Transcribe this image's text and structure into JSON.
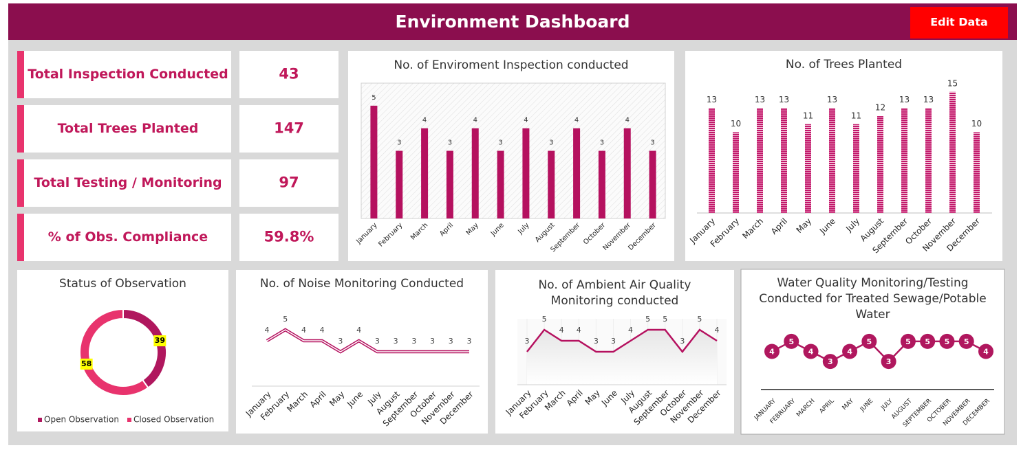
{
  "header": {
    "title": "Environment Dashboard",
    "button": "Edit Data"
  },
  "kpis": [
    {
      "label": "Total Inspection Conducted",
      "value": "43"
    },
    {
      "label": "Total Trees Planted",
      "value": "147"
    },
    {
      "label": "Total Testing / Monitoring",
      "value": "97"
    },
    {
      "label": "% of Obs. Compliance",
      "value": "59.8%"
    }
  ],
  "chart_data": [
    {
      "type": "bar",
      "title": "No. of Enviroment Inspection conducted",
      "color": "#b5115f",
      "categories": [
        "January",
        "February",
        "March",
        "April",
        "May",
        "June",
        "July",
        "August",
        "September",
        "October",
        "November",
        "December"
      ],
      "values": [
        5,
        3,
        4,
        3,
        4,
        3,
        4,
        3,
        4,
        3,
        4,
        3
      ],
      "ylim": [
        0,
        6
      ]
    },
    {
      "type": "bar",
      "title": "No. of Trees Planted",
      "color": "#c2186b",
      "categories": [
        "January",
        "February",
        "March",
        "April",
        "May",
        "June",
        "July",
        "August",
        "September",
        "October",
        "November",
        "December"
      ],
      "values": [
        13,
        10,
        13,
        13,
        11,
        13,
        11,
        12,
        13,
        13,
        15,
        10
      ],
      "ylim": [
        0,
        16
      ]
    },
    {
      "type": "donut",
      "title": "Status of Observation",
      "categories": [
        "Open Observation",
        "Closed Observation"
      ],
      "values": [
        39,
        58
      ],
      "colors": [
        "#b0175e",
        "#e8336d"
      ]
    },
    {
      "type": "line",
      "title": "No. of Noise Monitoring Conducted",
      "color": "#b5115f",
      "categories": [
        "January",
        "February",
        "March",
        "April",
        "May",
        "June",
        "July",
        "August",
        "September",
        "October",
        "November",
        "December"
      ],
      "values": [
        4,
        5,
        4,
        4,
        3,
        4,
        3,
        3,
        3,
        3,
        3,
        3
      ],
      "ylim": [
        0,
        6
      ]
    },
    {
      "type": "area",
      "title": "No. of Ambient Air Quality Monitoring conducted",
      "color": "#b5115f",
      "categories": [
        "January",
        "February",
        "March",
        "April",
        "May",
        "June",
        "July",
        "August",
        "September",
        "October",
        "November",
        "December"
      ],
      "values": [
        3,
        5,
        4,
        4,
        3,
        3,
        4,
        5,
        5,
        3,
        5,
        4
      ],
      "ylim": [
        0,
        6
      ]
    },
    {
      "type": "line",
      "title": "Water Quality Monitoring/Testing Conducted for Treated Sewage/Potable Water",
      "color": "#b0175e",
      "categories": [
        "JANUARY",
        "FEBRUARY",
        "MARCH",
        "APRIL",
        "MAY",
        "JUNE",
        "JULY",
        "AUGUST",
        "SEPTEMBER",
        "OCTOBER",
        "NOVEMBER",
        "DECEMBER"
      ],
      "values": [
        4,
        5,
        4,
        3,
        4,
        5,
        3,
        5,
        5,
        5,
        5,
        4
      ],
      "ylim": [
        0,
        8
      ]
    }
  ]
}
